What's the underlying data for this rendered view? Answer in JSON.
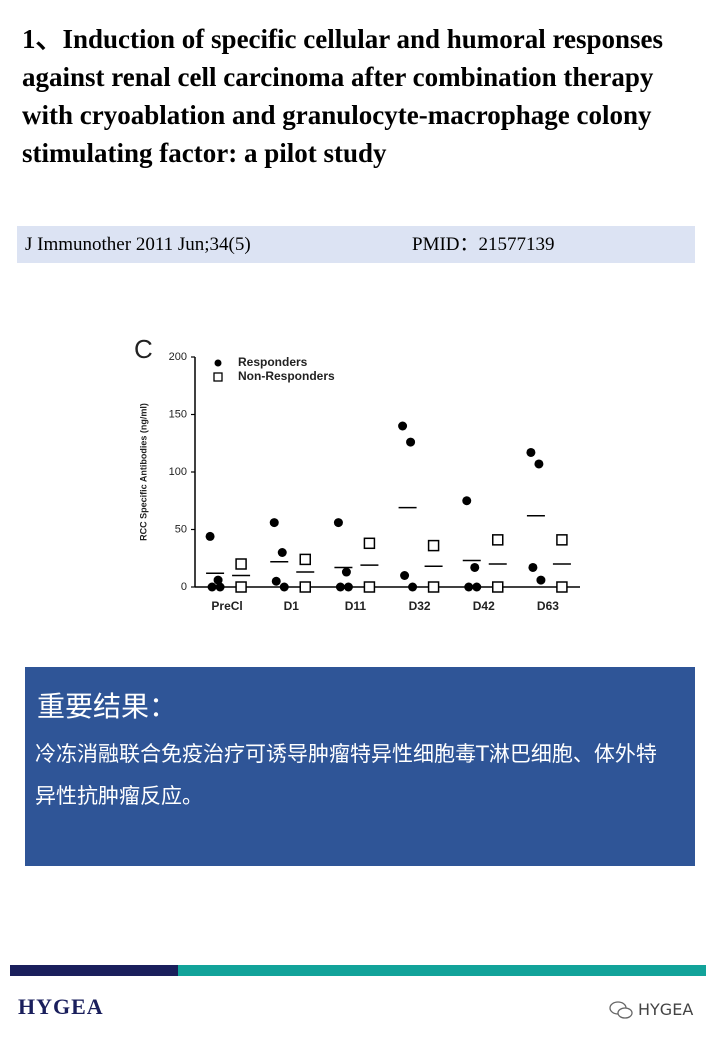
{
  "header": {
    "title": "1、Induction of specific cellular and humoral responses against renal cell carcinoma after combination therapy with cryoablation and granulocyte-macrophage colony stimulating factor: a pilot study",
    "journal": "J Immunother 2011 Jun;34(5)",
    "pmid": "PMID：21577139"
  },
  "chart_data": {
    "type": "dot",
    "panel": "C",
    "y_label": "RCC Specific Antibodies (ng/ml)",
    "categories": [
      "PreCl",
      "D1",
      "D11",
      "D32",
      "D42",
      "D63"
    ],
    "ylim": [
      0,
      200
    ],
    "yticks": [
      0,
      50,
      100,
      150,
      200
    ],
    "series": [
      {
        "name": "Responders",
        "marker": "filled-circle",
        "color": "#000000",
        "values": [
          [
            44,
            6,
            0,
            0
          ],
          [
            56,
            30,
            5,
            0
          ],
          [
            56,
            13,
            0,
            0
          ],
          [
            140,
            126,
            10,
            0
          ],
          [
            75,
            17,
            0,
            0
          ],
          [
            117,
            107,
            17,
            6
          ]
        ],
        "means": [
          12,
          22,
          17,
          69,
          23,
          62
        ]
      },
      {
        "name": "Non-Responders",
        "marker": "open-square",
        "color": "#000000",
        "values": [
          [
            20,
            0
          ],
          [
            24,
            0
          ],
          [
            38,
            0
          ],
          [
            36,
            0
          ],
          [
            41,
            0
          ],
          [
            41,
            0
          ]
        ],
        "means": [
          10,
          13,
          19,
          18,
          20,
          20
        ]
      }
    ]
  },
  "key_results": {
    "heading": "重要结果：",
    "body": "冷冻消融联合免疫治疗可诱导肿瘤特异性细胞毒T淋巴细胞、体外特异性抗肿瘤反应。"
  },
  "footer": {
    "left_logo": "HYGEA",
    "right_logo": "HYGEA"
  }
}
